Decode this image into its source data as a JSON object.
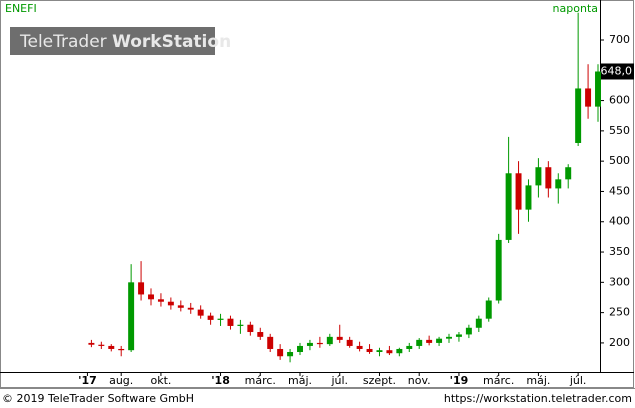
{
  "chart_data": {
    "type": "candlestick",
    "title": "ENEFI",
    "subtitle": "naponta",
    "watermark": [
      "TeleTrader",
      "WorkStation"
    ],
    "x": [
      5.5,
      6.0,
      6.5,
      7.0,
      7.5,
      8.0,
      8.5,
      9.0,
      9.5,
      10.0,
      10.5,
      11.0,
      11.5,
      12.0,
      12.5,
      13.0,
      13.5,
      14.0,
      14.5,
      15.0,
      15.5,
      16.0,
      16.5,
      17.0,
      17.5,
      18.0,
      18.5,
      19.0,
      19.5,
      20.0,
      20.5,
      21.0,
      21.5,
      22.0,
      22.5,
      23.0,
      23.5,
      24.0,
      24.5,
      25.0,
      25.5,
      26.0,
      26.5,
      27.0,
      27.5,
      28.0,
      28.5,
      29.0,
      29.5,
      30.0,
      30.5,
      31.0
    ],
    "open": [
      200,
      197,
      195,
      190,
      188,
      300,
      280,
      272,
      268,
      262,
      258,
      255,
      245,
      238,
      240,
      228,
      230,
      218,
      210,
      190,
      178,
      185,
      195,
      200,
      198,
      210,
      205,
      195,
      190,
      185,
      188,
      183,
      190,
      195,
      205,
      200,
      207,
      210,
      214,
      225,
      240,
      270,
      370,
      480,
      420,
      460,
      490,
      455,
      470,
      530,
      620,
      590
    ],
    "high": [
      205,
      202,
      198,
      195,
      330,
      335,
      290,
      282,
      275,
      270,
      266,
      262,
      250,
      248,
      245,
      238,
      235,
      225,
      215,
      198,
      190,
      200,
      205,
      210,
      215,
      230,
      210,
      202,
      198,
      192,
      195,
      192,
      200,
      208,
      212,
      210,
      215,
      218,
      230,
      245,
      275,
      380,
      540,
      500,
      470,
      505,
      500,
      480,
      495,
      745,
      660,
      660
    ],
    "low": [
      193,
      190,
      186,
      178,
      185,
      270,
      262,
      260,
      255,
      252,
      248,
      240,
      230,
      228,
      222,
      215,
      212,
      205,
      185,
      172,
      168,
      180,
      188,
      192,
      195,
      200,
      192,
      186,
      182,
      178,
      180,
      178,
      185,
      190,
      196,
      195,
      200,
      202,
      208,
      218,
      235,
      265,
      365,
      380,
      400,
      440,
      440,
      430,
      455,
      525,
      570,
      565
    ],
    "close": [
      197,
      195,
      190,
      188,
      300,
      280,
      272,
      268,
      262,
      258,
      255,
      245,
      238,
      240,
      228,
      230,
      218,
      210,
      190,
      178,
      185,
      195,
      200,
      198,
      210,
      205,
      195,
      190,
      185,
      188,
      183,
      190,
      195,
      205,
      200,
      207,
      210,
      214,
      225,
      240,
      270,
      370,
      480,
      420,
      460,
      490,
      455,
      470,
      490,
      620,
      590,
      648
    ],
    "up_color": "#009900",
    "down_color": "#cc0000",
    "xlim": [
      1.0,
      31.1
    ],
    "xticks": [
      {
        "value": 5.3,
        "label": "'17"
      },
      {
        "value": 7,
        "label": "aug."
      },
      {
        "value": 9,
        "label": "okt."
      },
      {
        "value": 12,
        "label": "'18"
      },
      {
        "value": 14,
        "label": "márc."
      },
      {
        "value": 16,
        "label": "máj."
      },
      {
        "value": 18,
        "label": "júl."
      },
      {
        "value": 20,
        "label": "szept."
      },
      {
        "value": 22,
        "label": "nov."
      },
      {
        "value": 24,
        "label": "'19"
      },
      {
        "value": 26,
        "label": "márc."
      },
      {
        "value": 28,
        "label": "máj."
      },
      {
        "value": 30,
        "label": "júl."
      }
    ],
    "ylim": [
      152,
      766
    ],
    "yticks": [
      200,
      250,
      300,
      350,
      400,
      450,
      500,
      550,
      600,
      650,
      700
    ],
    "grid": false,
    "last_price": {
      "value": 648,
      "label": "648,0"
    },
    "footer": {
      "left": "© 2019 TeleTrader Software GmbH",
      "right": "https://workstation.teletrader.com"
    }
  }
}
